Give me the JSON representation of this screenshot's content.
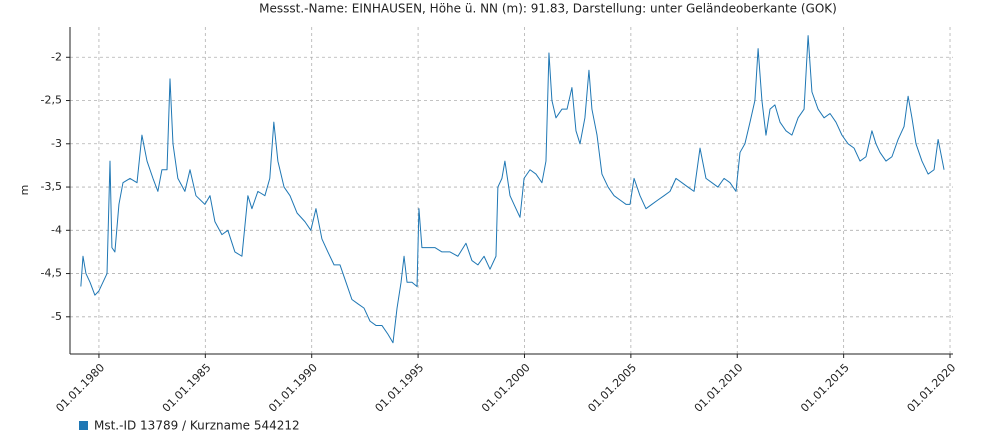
{
  "chart_data": {
    "type": "line",
    "title": "Messst.-Name: EINHAUSEN, Höhe ü. NN (m): 91.83, Darstellung: unter Geländeoberkante (GOK)",
    "ylabel": "m",
    "x": [
      1979.15,
      1979.25,
      1979.39,
      1979.58,
      1979.81,
      1980.0,
      1980.19,
      1980.38,
      1980.52,
      1980.61,
      1980.75,
      1980.94,
      1981.13,
      1981.46,
      1981.79,
      1982.02,
      1982.26,
      1982.54,
      1982.77,
      1982.96,
      1983.2,
      1983.34,
      1983.48,
      1983.71,
      1984.04,
      1984.28,
      1984.56,
      1984.98,
      1985.22,
      1985.45,
      1985.78,
      1986.06,
      1986.39,
      1986.72,
      1987.0,
      1987.19,
      1987.47,
      1987.8,
      1988.03,
      1988.22,
      1988.41,
      1988.7,
      1988.98,
      1989.31,
      1989.68,
      1989.96,
      1990.2,
      1990.48,
      1990.76,
      1991.05,
      1991.33,
      1991.61,
      1991.89,
      1992.17,
      1992.46,
      1992.74,
      1993.02,
      1993.3,
      1993.58,
      1993.82,
      1994.01,
      1994.2,
      1994.34,
      1994.48,
      1994.71,
      1994.95,
      1995.04,
      1995.18,
      1995.46,
      1995.79,
      1996.12,
      1996.5,
      1996.87,
      1997.25,
      1997.53,
      1997.81,
      1998.1,
      1998.38,
      1998.66,
      1998.75,
      1998.94,
      1999.08,
      1999.32,
      1999.6,
      1999.79,
      1999.98,
      2000.26,
      2000.54,
      2000.82,
      2001.01,
      2001.15,
      2001.29,
      2001.48,
      2001.76,
      2002.0,
      2002.23,
      2002.42,
      2002.61,
      2002.84,
      2003.03,
      2003.17,
      2003.41,
      2003.64,
      2003.93,
      2004.21,
      2004.49,
      2004.77,
      2004.96,
      2005.15,
      2005.43,
      2005.71,
      2005.99,
      2006.27,
      2006.56,
      2006.84,
      2007.12,
      2007.4,
      2007.68,
      2007.97,
      2008.25,
      2008.53,
      2008.81,
      2009.09,
      2009.38,
      2009.66,
      2009.94,
      2010.13,
      2010.36,
      2010.6,
      2010.83,
      2010.98,
      2011.16,
      2011.35,
      2011.54,
      2011.77,
      2012.01,
      2012.29,
      2012.57,
      2012.86,
      2013.14,
      2013.33,
      2013.51,
      2013.8,
      2014.08,
      2014.36,
      2014.64,
      2014.92,
      2015.21,
      2015.49,
      2015.77,
      2016.05,
      2016.33,
      2016.52,
      2016.71,
      2016.99,
      2017.27,
      2017.56,
      2017.84,
      2018.03,
      2018.21,
      2018.4,
      2018.68,
      2018.97,
      2019.25,
      2019.44,
      2019.72
    ],
    "series": [
      {
        "name": "Mst.-ID 13789 / Kurzname 544212",
        "color": "#1f77b4",
        "values": [
          -4.65,
          -4.3,
          -4.5,
          -4.6,
          -4.75,
          -4.7,
          -4.6,
          -4.5,
          -3.2,
          -4.2,
          -4.25,
          -3.7,
          -3.45,
          -3.4,
          -3.45,
          -2.9,
          -3.2,
          -3.4,
          -3.55,
          -3.3,
          -3.3,
          -2.25,
          -3.0,
          -3.4,
          -3.55,
          -3.3,
          -3.6,
          -3.7,
          -3.6,
          -3.9,
          -4.05,
          -4.0,
          -4.25,
          -4.3,
          -3.6,
          -3.75,
          -3.55,
          -3.6,
          -3.4,
          -2.75,
          -3.2,
          -3.5,
          -3.6,
          -3.8,
          -3.9,
          -4.0,
          -3.75,
          -4.1,
          -4.25,
          -4.4,
          -4.4,
          -4.6,
          -4.8,
          -4.85,
          -4.9,
          -5.05,
          -5.1,
          -5.1,
          -5.2,
          -5.3,
          -4.9,
          -4.6,
          -4.3,
          -4.6,
          -4.6,
          -4.65,
          -3.75,
          -4.2,
          -4.2,
          -4.2,
          -4.25,
          -4.25,
          -4.3,
          -4.15,
          -4.35,
          -4.4,
          -4.3,
          -4.45,
          -4.3,
          -3.5,
          -3.4,
          -3.2,
          -3.6,
          -3.75,
          -3.85,
          -3.4,
          -3.3,
          -3.35,
          -3.45,
          -3.2,
          -1.95,
          -2.5,
          -2.7,
          -2.6,
          -2.6,
          -2.35,
          -2.85,
          -3.0,
          -2.7,
          -2.15,
          -2.6,
          -2.9,
          -3.35,
          -3.5,
          -3.6,
          -3.65,
          -3.7,
          -3.7,
          -3.4,
          -3.6,
          -3.75,
          -3.7,
          -3.65,
          -3.6,
          -3.55,
          -3.4,
          -3.45,
          -3.5,
          -3.55,
          -3.05,
          -3.4,
          -3.45,
          -3.5,
          -3.4,
          -3.45,
          -3.55,
          -3.1,
          -3.0,
          -2.75,
          -2.5,
          -1.9,
          -2.5,
          -2.9,
          -2.6,
          -2.55,
          -2.75,
          -2.85,
          -2.9,
          -2.7,
          -2.6,
          -1.75,
          -2.4,
          -2.6,
          -2.7,
          -2.65,
          -2.75,
          -2.9,
          -3.0,
          -3.05,
          -3.2,
          -3.15,
          -2.85,
          -3.0,
          -3.1,
          -3.2,
          -3.15,
          -2.95,
          -2.8,
          -2.45,
          -2.7,
          -3.0,
          -3.2,
          -3.35,
          -3.3,
          -2.95,
          -3.3
        ]
      }
    ],
    "xlim": [
      1978.64,
      2020.14
    ],
    "xticks": [
      {
        "value": 1980,
        "label": "01.01.1980"
      },
      {
        "value": 1985,
        "label": "01.01.1985"
      },
      {
        "value": 1990,
        "label": "01.01.1990"
      },
      {
        "value": 1995,
        "label": "01.01.1995"
      },
      {
        "value": 2000,
        "label": "01.01.2000"
      },
      {
        "value": 2005,
        "label": "01.01.2005"
      },
      {
        "value": 2010,
        "label": "01.01.2010"
      },
      {
        "value": 2015,
        "label": "01.01.2015"
      },
      {
        "value": 2020,
        "label": "01.01.2020"
      }
    ],
    "ylim": [
      -5.43,
      -1.65
    ],
    "yticks": [
      -5,
      {
        "value": -4.5,
        "label": "-4,5"
      },
      -4,
      {
        "value": -3.5,
        "label": "-3,5"
      },
      -3,
      {
        "value": -2.5,
        "label": "-2,5"
      },
      -2
    ],
    "grid": true,
    "legend": "bottom-left"
  }
}
